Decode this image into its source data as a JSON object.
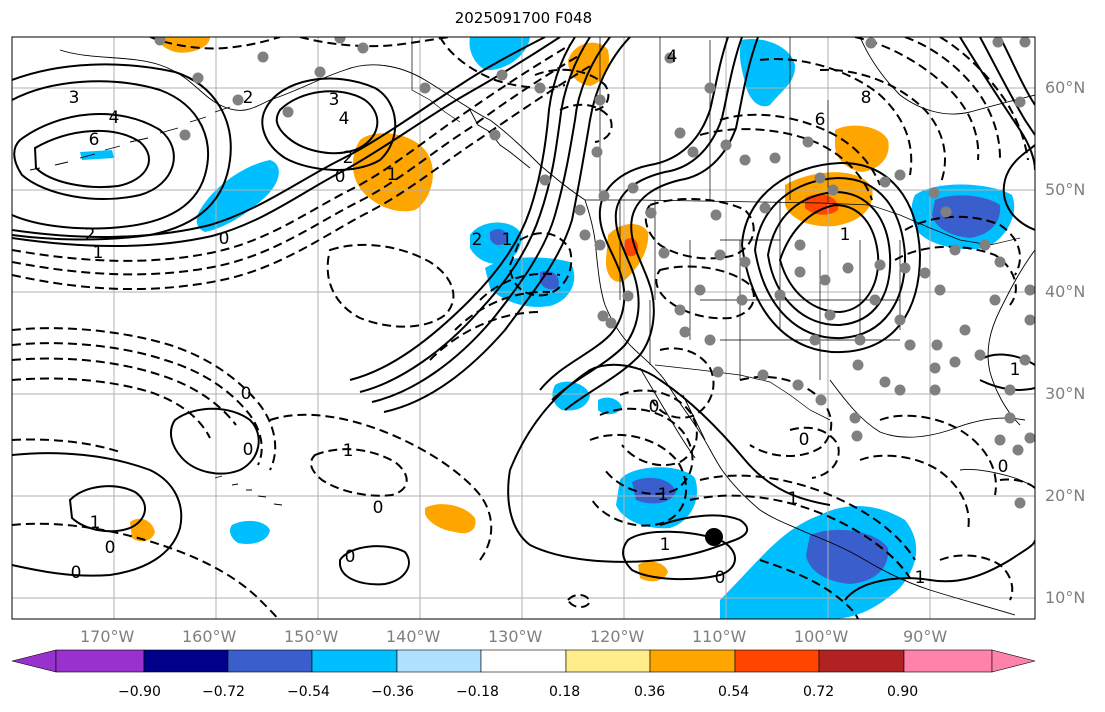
{
  "title": "2025091700 F048",
  "longitude_labels": [
    "170°W",
    "160°W",
    "150°W",
    "140°W",
    "130°W",
    "120°W",
    "110°W",
    "100°W",
    "90°W"
  ],
  "latitude_labels": [
    "60°N",
    "50°N",
    "40°N",
    "30°N",
    "20°N",
    "10°N"
  ],
  "colorbar": {
    "ticks": [
      "−0.90",
      "−0.72",
      "−0.54",
      "−0.36",
      "−0.18",
      "0.18",
      "0.36",
      "0.54",
      "0.72",
      "0.90"
    ],
    "colors": [
      "#9932cc",
      "#00008b",
      "#3a5fcd",
      "#00bfff",
      "#b0e2ff",
      "#ffffff",
      "#ffec8b",
      "#ffa500",
      "#ff4500",
      "#b22222",
      "#ff82ab"
    ]
  },
  "contour_labels": [
    "3",
    "4",
    "6",
    "2",
    "2",
    "1",
    "0",
    "3",
    "4",
    "2",
    "1",
    "0",
    "1",
    "2",
    "4",
    "6",
    "8",
    "0",
    "0",
    "0",
    "1",
    "0",
    "1",
    "1",
    "1",
    "0",
    "1",
    "0",
    "1",
    "1",
    "0",
    "0",
    "1",
    "0",
    "0"
  ],
  "marker": {
    "lon": -110.2,
    "lat": 16.1
  }
}
